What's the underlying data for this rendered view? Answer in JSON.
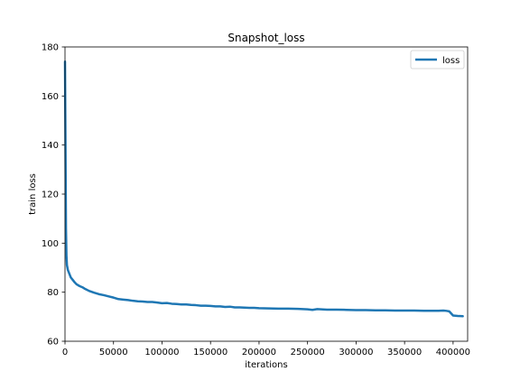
{
  "chart_data": {
    "type": "line",
    "title": "Snapshot_loss",
    "xlabel": "iterations",
    "ylabel": "train loss",
    "xlim": [
      0,
      415000
    ],
    "ylim": [
      60,
      180
    ],
    "xticks": [
      0,
      50000,
      100000,
      150000,
      200000,
      250000,
      300000,
      350000,
      400000
    ],
    "xtick_labels": [
      "0",
      "50000",
      "100000",
      "150000",
      "200000",
      "250000",
      "300000",
      "350000",
      "400000"
    ],
    "yticks": [
      60,
      80,
      100,
      120,
      140,
      160,
      180
    ],
    "ytick_labels": [
      "60",
      "80",
      "100",
      "120",
      "140",
      "160",
      "180"
    ],
    "grid": false,
    "legend": {
      "position": "top-right",
      "entries": [
        "loss"
      ]
    },
    "series": [
      {
        "name": "loss",
        "color": "#1f77b4",
        "x": [
          0,
          500,
          1000,
          1500,
          2000,
          3000,
          4000,
          5000,
          6000,
          8000,
          10000,
          12000,
          15000,
          18000,
          20000,
          25000,
          30000,
          35000,
          40000,
          45000,
          50000,
          55000,
          60000,
          65000,
          70000,
          75000,
          80000,
          85000,
          90000,
          95000,
          100000,
          105000,
          110000,
          115000,
          120000,
          125000,
          130000,
          135000,
          140000,
          145000,
          150000,
          155000,
          160000,
          165000,
          170000,
          175000,
          180000,
          185000,
          190000,
          195000,
          200000,
          210000,
          220000,
          230000,
          240000,
          250000,
          255000,
          260000,
          270000,
          280000,
          290000,
          300000,
          310000,
          320000,
          330000,
          340000,
          350000,
          360000,
          370000,
          380000,
          385000,
          390000,
          393000,
          396000,
          400000,
          405000,
          410000
        ],
        "values": [
          174,
          140,
          106,
          95,
          91,
          89,
          88,
          87,
          86,
          85,
          84,
          83.2,
          82.5,
          82,
          81.5,
          80.5,
          79.8,
          79.2,
          78.8,
          78.3,
          77.8,
          77.2,
          77,
          76.8,
          76.5,
          76.3,
          76.2,
          76,
          76,
          75.8,
          75.5,
          75.6,
          75.3,
          75.2,
          75,
          75,
          74.8,
          74.7,
          74.5,
          74.5,
          74.4,
          74.2,
          74.2,
          74,
          74.1,
          73.8,
          73.8,
          73.7,
          73.6,
          73.6,
          73.5,
          73.4,
          73.3,
          73.3,
          73.2,
          73,
          72.8,
          73.1,
          72.9,
          72.9,
          72.8,
          72.7,
          72.7,
          72.6,
          72.6,
          72.5,
          72.5,
          72.5,
          72.4,
          72.4,
          72.4,
          72.5,
          72.4,
          72.2,
          70.5,
          70.3,
          70.2
        ]
      }
    ]
  }
}
